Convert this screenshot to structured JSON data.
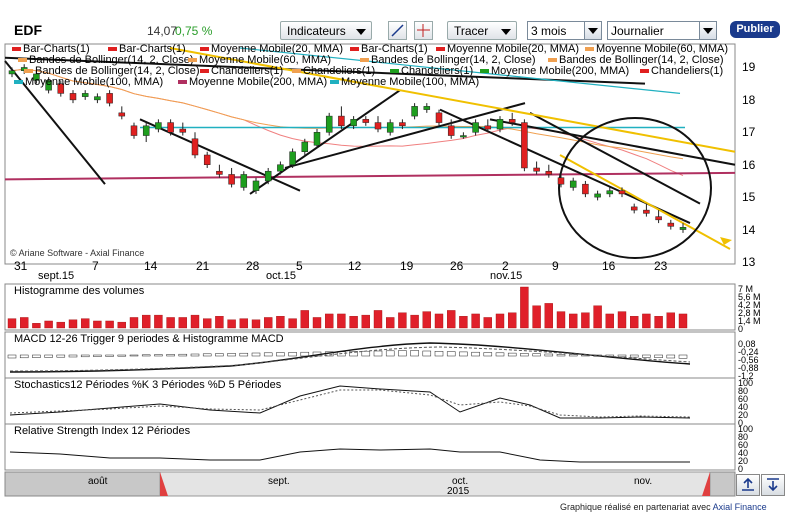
{
  "toolbar": {
    "ticker": "EDF",
    "price": "14,07",
    "change": "0,75 %",
    "indicators_label": "Indicateurs",
    "tracer_label": "Tracer",
    "period_value": "3 mois",
    "interval_value": "Journalier",
    "publish_label": "Publier"
  },
  "legend": {
    "row1": [
      "Bar-Charts(1)",
      "Bar-Charts(1)",
      "Moyenne Mobile(20, MMA)",
      "Bar-Charts(1)",
      "Moyenne Mobile(20, MMA)",
      "Moyenne Mobile(60, MMA)"
    ],
    "row2": [
      "Bandes de Bollinger(14, 2, Close)",
      "Moyenne Mobile(60, MMA)",
      "Bandes de Bollinger(14, 2, Close)",
      "Bandes de Bollinger(14, 2, Close)"
    ],
    "row3": [
      "Bandes de Bollinger(14, 2, Close)",
      "Chandeliers(1)",
      "Chandeliers(1)",
      "Chandeliers(1)",
      "Moyenne Mobile(200, MMA)",
      "Chandeliers(1)"
    ],
    "row4": [
      "Moyenne Mobile(100, MMA)",
      "Moyenne Mobile(200, MMA)",
      "Moyenne Mobile(100, MMA)"
    ]
  },
  "copyright": "© Ariane Software - Axial Finance",
  "price_axis": [
    "19",
    "18",
    "17",
    "16",
    "15",
    "14",
    "13"
  ],
  "date_axis": {
    "days": [
      "31",
      "7",
      "14",
      "21",
      "28",
      "5",
      "12",
      "19",
      "26",
      "2",
      "9",
      "16",
      "23"
    ],
    "months": [
      "sept.15",
      "oct.15",
      "nov.15"
    ]
  },
  "panels": {
    "volume_title": "Histogramme des volumes",
    "volume_axis": [
      "7 M",
      "5,6 M",
      "4,2 M",
      "2,8 M",
      "1,4 M",
      "0"
    ],
    "macd_title": "MACD 12-26   Trigger 9 periodes & Histogramme MACD",
    "macd_axis": [
      "0,08",
      "-0,24",
      "-0,56",
      "-0,88",
      "-1,2"
    ],
    "stoch_title": "Stochastics12 Périodes   %K 3 Périodes   %D 5 Périodes",
    "stoch_axis": [
      "100",
      "80",
      "60",
      "40",
      "20",
      "0"
    ],
    "rsi_title": "Relative Strength Index 12 Périodes",
    "rsi_axis": [
      "100",
      "80",
      "60",
      "40",
      "20",
      "0"
    ]
  },
  "navigator": {
    "months": [
      "août",
      "sept.",
      "oct.",
      "nov."
    ],
    "year": "2015"
  },
  "footer": {
    "text": "Graphique réalisé en partenariat avec",
    "link": "Axial Finance"
  },
  "colors": {
    "up": "#1e9e1e",
    "down": "#e02020",
    "volume": "#e0202a",
    "ma20": "#f08080",
    "ma60": "#f0a050",
    "ma100": "#20b0c0",
    "ma200": "#b03060",
    "trend_yellow": "#f0c000",
    "accent": "#1a3a8c"
  },
  "chart_data": {
    "type": "candlestick",
    "price_range": [
      13,
      19.6
    ],
    "candles": [
      [
        18.8,
        19.0,
        18.7,
        18.9
      ],
      [
        18.9,
        19.1,
        18.8,
        19.0
      ],
      [
        18.6,
        18.9,
        18.5,
        18.8
      ],
      [
        18.3,
        18.7,
        18.2,
        18.6
      ],
      [
        18.5,
        18.6,
        18.1,
        18.2
      ],
      [
        18.2,
        18.3,
        17.9,
        18.0
      ],
      [
        18.1,
        18.3,
        18.0,
        18.2
      ],
      [
        18.0,
        18.2,
        17.9,
        18.1
      ],
      [
        18.2,
        18.3,
        17.8,
        17.9
      ],
      [
        17.6,
        17.8,
        17.4,
        17.5
      ],
      [
        17.2,
        17.3,
        16.8,
        16.9
      ],
      [
        16.9,
        17.3,
        16.7,
        17.2
      ],
      [
        17.1,
        17.4,
        17.0,
        17.3
      ],
      [
        17.3,
        17.4,
        16.9,
        17.0
      ],
      [
        17.1,
        17.3,
        16.9,
        17.0
      ],
      [
        16.8,
        17.0,
        16.2,
        16.3
      ],
      [
        16.3,
        16.4,
        15.9,
        16.0
      ],
      [
        15.8,
        16.0,
        15.6,
        15.7
      ],
      [
        15.7,
        15.9,
        15.3,
        15.4
      ],
      [
        15.3,
        15.8,
        15.2,
        15.7
      ],
      [
        15.2,
        15.6,
        15.1,
        15.5
      ],
      [
        15.5,
        15.9,
        15.4,
        15.8
      ],
      [
        15.8,
        16.1,
        15.7,
        16.0
      ],
      [
        16.0,
        16.5,
        15.9,
        16.4
      ],
      [
        16.4,
        16.8,
        16.3,
        16.7
      ],
      [
        16.6,
        17.1,
        16.5,
        17.0
      ],
      [
        17.0,
        17.6,
        16.9,
        17.5
      ],
      [
        17.5,
        17.8,
        17.1,
        17.2
      ],
      [
        17.2,
        17.5,
        17.1,
        17.4
      ],
      [
        17.4,
        17.5,
        17.2,
        17.3
      ],
      [
        17.3,
        17.5,
        17.0,
        17.1
      ],
      [
        17.0,
        17.4,
        16.9,
        17.3
      ],
      [
        17.3,
        17.4,
        17.1,
        17.2
      ],
      [
        17.5,
        17.9,
        17.4,
        17.8
      ],
      [
        17.7,
        17.9,
        17.6,
        17.8
      ],
      [
        17.6,
        17.7,
        17.2,
        17.3
      ],
      [
        17.2,
        17.4,
        16.8,
        16.9
      ],
      [
        16.9,
        17.0,
        16.8,
        16.9
      ],
      [
        17.0,
        17.4,
        16.9,
        17.3
      ],
      [
        17.2,
        17.4,
        17.0,
        17.1
      ],
      [
        17.1,
        17.5,
        17.0,
        17.4
      ],
      [
        17.4,
        17.6,
        17.2,
        17.3
      ],
      [
        17.3,
        17.4,
        15.8,
        15.9
      ],
      [
        15.9,
        16.1,
        15.7,
        15.8
      ],
      [
        15.8,
        16.0,
        15.6,
        15.7
      ],
      [
        15.6,
        15.8,
        15.3,
        15.4
      ],
      [
        15.3,
        15.6,
        15.2,
        15.5
      ],
      [
        15.4,
        15.5,
        15.0,
        15.1
      ],
      [
        15.0,
        15.2,
        14.9,
        15.1
      ],
      [
        15.1,
        15.3,
        15.0,
        15.2
      ],
      [
        15.2,
        15.3,
        15.0,
        15.1
      ],
      [
        14.7,
        14.8,
        14.5,
        14.6
      ],
      [
        14.6,
        14.8,
        14.4,
        14.5
      ],
      [
        14.4,
        14.6,
        14.2,
        14.3
      ],
      [
        14.2,
        14.3,
        14.0,
        14.1
      ],
      [
        14.0,
        14.2,
        13.9,
        14.07
      ]
    ],
    "volume_range": [
      0,
      7
    ],
    "volumes": [
      1.6,
      1.8,
      0.8,
      1.2,
      1.0,
      1.4,
      1.6,
      1.2,
      1.2,
      1.0,
      1.8,
      2.2,
      2.2,
      1.8,
      1.8,
      2.2,
      1.6,
      2.0,
      1.4,
      1.6,
      1.4,
      1.8,
      2.0,
      1.6,
      3.0,
      1.8,
      2.4,
      2.4,
      2.0,
      2.2,
      3.0,
      1.8,
      2.6,
      2.2,
      2.8,
      2.4,
      3.0,
      2.0,
      2.4,
      1.8,
      2.4,
      2.6,
      7.0,
      3.8,
      4.2,
      2.8,
      2.4,
      2.6,
      3.8,
      2.4,
      2.8,
      2.0,
      2.4,
      2.0,
      2.6,
      2.4
    ]
  }
}
